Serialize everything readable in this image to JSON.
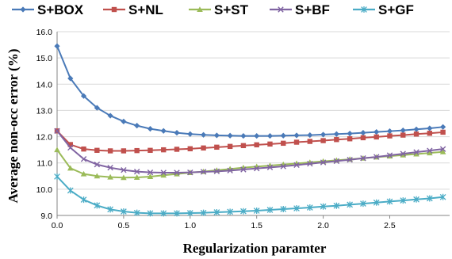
{
  "chart_data": {
    "type": "line",
    "xlabel": "Regularization paramter",
    "ylabel": "Average non-occ error (%)",
    "xlim": [
      0,
      2.95
    ],
    "ylim": [
      9.0,
      16.0
    ],
    "x_ticks": [
      "0.0",
      "0.5",
      "1.0",
      "1.5",
      "2.0",
      "2.5"
    ],
    "y_ticks": [
      "9.0",
      "10.0",
      "11.0",
      "12.0",
      "13.0",
      "14.0",
      "15.0",
      "16.0"
    ],
    "grid": "horizontal",
    "legend_position": "top",
    "x": [
      0.0,
      0.1,
      0.2,
      0.3,
      0.4,
      0.5,
      0.6,
      0.7,
      0.8,
      0.9,
      1.0,
      1.1,
      1.2,
      1.3,
      1.4,
      1.5,
      1.6,
      1.7,
      1.8,
      1.9,
      2.0,
      2.1,
      2.2,
      2.3,
      2.4,
      2.5,
      2.6,
      2.7,
      2.8,
      2.9
    ],
    "series": [
      {
        "name": "S+BOX",
        "color": "#4a7ab8",
        "marker": "diamond",
        "values": [
          15.45,
          14.22,
          13.55,
          13.1,
          12.8,
          12.58,
          12.42,
          12.3,
          12.22,
          12.15,
          12.1,
          12.07,
          12.05,
          12.04,
          12.03,
          12.03,
          12.03,
          12.04,
          12.05,
          12.06,
          12.08,
          12.1,
          12.12,
          12.15,
          12.18,
          12.21,
          12.24,
          12.28,
          12.32,
          12.37
        ]
      },
      {
        "name": "S+NL",
        "color": "#c0504d",
        "marker": "square",
        "values": [
          12.22,
          11.7,
          11.53,
          11.48,
          11.46,
          11.46,
          11.47,
          11.48,
          11.5,
          11.52,
          11.54,
          11.57,
          11.6,
          11.63,
          11.66,
          11.69,
          11.72,
          11.75,
          11.79,
          11.82,
          11.85,
          11.89,
          11.92,
          11.96,
          11.99,
          12.03,
          12.06,
          12.1,
          12.13,
          12.17
        ]
      },
      {
        "name": "S+ST",
        "color": "#9bbb59",
        "marker": "triangle",
        "values": [
          11.5,
          10.8,
          10.58,
          10.5,
          10.46,
          10.44,
          10.45,
          10.48,
          10.53,
          10.58,
          10.63,
          10.67,
          10.72,
          10.77,
          10.82,
          10.86,
          10.9,
          10.94,
          10.98,
          11.02,
          11.06,
          11.1,
          11.14,
          11.18,
          11.22,
          11.26,
          11.3,
          11.34,
          11.38,
          11.42
        ]
      },
      {
        "name": "S+BF",
        "color": "#8064a2",
        "marker": "x",
        "values": [
          12.22,
          11.58,
          11.15,
          10.94,
          10.82,
          10.73,
          10.67,
          10.64,
          10.63,
          10.63,
          10.64,
          10.66,
          10.68,
          10.71,
          10.75,
          10.79,
          10.83,
          10.87,
          10.92,
          10.97,
          11.02,
          11.07,
          11.12,
          11.18,
          11.23,
          11.29,
          11.35,
          11.41,
          11.47,
          11.53
        ]
      },
      {
        "name": "S+GF",
        "color": "#4bacc6",
        "marker": "star",
        "values": [
          10.48,
          9.95,
          9.6,
          9.38,
          9.23,
          9.15,
          9.1,
          9.08,
          9.08,
          9.08,
          9.09,
          9.1,
          9.12,
          9.14,
          9.16,
          9.18,
          9.21,
          9.24,
          9.27,
          9.3,
          9.34,
          9.37,
          9.41,
          9.45,
          9.49,
          9.53,
          9.57,
          9.61,
          9.65,
          9.7
        ]
      }
    ]
  }
}
